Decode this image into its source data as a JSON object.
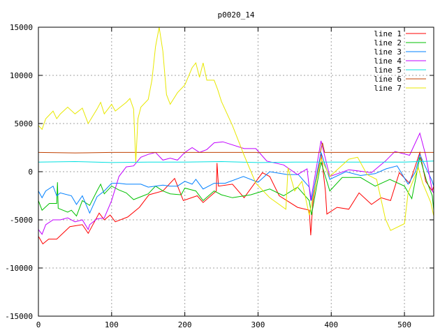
{
  "chart_data": {
    "type": "line",
    "title": "p0020_14",
    "xlabel": "",
    "ylabel": "",
    "xlim": [
      0,
      540
    ],
    "ylim": [
      -15000,
      15000
    ],
    "xticks": [
      0,
      100,
      200,
      300,
      400,
      500
    ],
    "yticks": [
      -15000,
      -10000,
      -5000,
      0,
      5000,
      10000,
      15000
    ],
    "grid": true,
    "legend_position": "top-right",
    "series": [
      {
        "name": "line 1",
        "color": "#ff0000",
        "points": [
          [
            0,
            -6700
          ],
          [
            6,
            -7500
          ],
          [
            14,
            -7000
          ],
          [
            25,
            -7000
          ],
          [
            43,
            -5700
          ],
          [
            60,
            -5500
          ],
          [
            68,
            -6400
          ],
          [
            83,
            -4300
          ],
          [
            90,
            -5000
          ],
          [
            98,
            -4500
          ],
          [
            105,
            -5200
          ],
          [
            122,
            -4700
          ],
          [
            138,
            -3700
          ],
          [
            151,
            -2400
          ],
          [
            170,
            -2000
          ],
          [
            186,
            -700
          ],
          [
            198,
            -3000
          ],
          [
            217,
            -2500
          ],
          [
            225,
            -3200
          ],
          [
            243,
            -2000
          ],
          [
            244,
            900
          ],
          [
            246,
            -1500
          ],
          [
            265,
            -1300
          ],
          [
            281,
            -2700
          ],
          [
            306,
            -100
          ],
          [
            316,
            -500
          ],
          [
            329,
            -2500
          ],
          [
            354,
            -3700
          ],
          [
            370,
            -4000
          ],
          [
            372,
            -6600
          ],
          [
            375,
            -3000
          ],
          [
            386,
            2000
          ],
          [
            392,
            -2000
          ],
          [
            394,
            -4400
          ],
          [
            408,
            -3700
          ],
          [
            424,
            -3900
          ],
          [
            438,
            -2200
          ],
          [
            455,
            -3400
          ],
          [
            468,
            -2700
          ],
          [
            481,
            -3000
          ],
          [
            493,
            -100
          ],
          [
            507,
            -1200
          ],
          [
            521,
            2000
          ],
          [
            529,
            -1000
          ],
          [
            538,
            -2000
          ],
          [
            540,
            -1500
          ]
        ]
      },
      {
        "name": "line 2",
        "color": "#00c000",
        "points": [
          [
            0,
            -3000
          ],
          [
            5,
            -4000
          ],
          [
            15,
            -3300
          ],
          [
            25,
            -3300
          ],
          [
            26,
            -1100
          ],
          [
            27,
            -3800
          ],
          [
            40,
            -4200
          ],
          [
            45,
            -4000
          ],
          [
            52,
            -4600
          ],
          [
            60,
            -3000
          ],
          [
            70,
            -3500
          ],
          [
            80,
            -2000
          ],
          [
            85,
            -1300
          ],
          [
            90,
            -2300
          ],
          [
            100,
            -1500
          ],
          [
            110,
            -1900
          ],
          [
            120,
            -2200
          ],
          [
            130,
            -2900
          ],
          [
            140,
            -2600
          ],
          [
            150,
            -2300
          ],
          [
            160,
            -1500
          ],
          [
            170,
            -2000
          ],
          [
            180,
            -2300
          ],
          [
            195,
            -2400
          ],
          [
            200,
            -1700
          ],
          [
            215,
            -2000
          ],
          [
            225,
            -3000
          ],
          [
            240,
            -2000
          ],
          [
            250,
            -2400
          ],
          [
            265,
            -2700
          ],
          [
            290,
            -2400
          ],
          [
            316,
            -1800
          ],
          [
            335,
            -2500
          ],
          [
            354,
            -1600
          ],
          [
            370,
            -3000
          ],
          [
            373,
            -4500
          ],
          [
            386,
            1000
          ],
          [
            398,
            -2000
          ],
          [
            415,
            -600
          ],
          [
            440,
            -600
          ],
          [
            460,
            -1500
          ],
          [
            480,
            -800
          ],
          [
            500,
            -1500
          ],
          [
            510,
            -2800
          ],
          [
            521,
            1500
          ],
          [
            530,
            -900
          ],
          [
            538,
            -2500
          ],
          [
            540,
            -4000
          ]
        ]
      },
      {
        "name": "line 3",
        "color": "#0080ff",
        "points": [
          [
            0,
            -2000
          ],
          [
            5,
            -2700
          ],
          [
            10,
            -2000
          ],
          [
            20,
            -1500
          ],
          [
            25,
            -2500
          ],
          [
            30,
            -2200
          ],
          [
            45,
            -2500
          ],
          [
            52,
            -3400
          ],
          [
            60,
            -2500
          ],
          [
            70,
            -4300
          ],
          [
            80,
            -2600
          ],
          [
            90,
            -2000
          ],
          [
            100,
            -1200
          ],
          [
            110,
            -1200
          ],
          [
            120,
            -1300
          ],
          [
            140,
            -1300
          ],
          [
            150,
            -1600
          ],
          [
            170,
            -1400
          ],
          [
            180,
            -1500
          ],
          [
            190,
            -1500
          ],
          [
            200,
            -1000
          ],
          [
            210,
            -1300
          ],
          [
            215,
            -800
          ],
          [
            225,
            -1800
          ],
          [
            240,
            -1200
          ],
          [
            255,
            -1200
          ],
          [
            280,
            -500
          ],
          [
            300,
            -1100
          ],
          [
            316,
            0
          ],
          [
            340,
            -300
          ],
          [
            355,
            -300
          ],
          [
            370,
            -1600
          ],
          [
            373,
            -3000
          ],
          [
            386,
            2000
          ],
          [
            398,
            -800
          ],
          [
            420,
            0
          ],
          [
            440,
            -400
          ],
          [
            460,
            -200
          ],
          [
            475,
            300
          ],
          [
            490,
            600
          ],
          [
            505,
            -1300
          ],
          [
            515,
            0
          ],
          [
            521,
            1800
          ],
          [
            530,
            300
          ],
          [
            538,
            -1000
          ],
          [
            540,
            -1500
          ]
        ]
      },
      {
        "name": "line 4",
        "color": "#c000ff",
        "points": [
          [
            0,
            -6000
          ],
          [
            5,
            -6500
          ],
          [
            10,
            -5500
          ],
          [
            20,
            -5000
          ],
          [
            30,
            -5000
          ],
          [
            40,
            -4800
          ],
          [
            50,
            -5200
          ],
          [
            60,
            -5000
          ],
          [
            68,
            -6000
          ],
          [
            70,
            -5500
          ],
          [
            80,
            -4900
          ],
          [
            90,
            -4800
          ],
          [
            100,
            -3000
          ],
          [
            110,
            -500
          ],
          [
            120,
            500
          ],
          [
            130,
            600
          ],
          [
            140,
            1500
          ],
          [
            150,
            1800
          ],
          [
            160,
            2000
          ],
          [
            170,
            1200
          ],
          [
            180,
            1400
          ],
          [
            190,
            1200
          ],
          [
            200,
            2000
          ],
          [
            210,
            2500
          ],
          [
            220,
            2000
          ],
          [
            230,
            2300
          ],
          [
            240,
            3000
          ],
          [
            252,
            3100
          ],
          [
            281,
            2400
          ],
          [
            297,
            2400
          ],
          [
            312,
            1100
          ],
          [
            335,
            700
          ],
          [
            354,
            -300
          ],
          [
            367,
            300
          ],
          [
            372,
            -3000
          ],
          [
            386,
            3200
          ],
          [
            398,
            -500
          ],
          [
            424,
            200
          ],
          [
            455,
            -100
          ],
          [
            474,
            1100
          ],
          [
            487,
            2100
          ],
          [
            507,
            1700
          ],
          [
            521,
            4000
          ],
          [
            529,
            1700
          ],
          [
            538,
            -2000
          ],
          [
            540,
            -2200
          ]
        ]
      },
      {
        "name": "line 5",
        "color": "#00e0e0",
        "points": [
          [
            0,
            1000
          ],
          [
            50,
            1050
          ],
          [
            100,
            950
          ],
          [
            150,
            1000
          ],
          [
            200,
            1000
          ],
          [
            250,
            1050
          ],
          [
            300,
            950
          ],
          [
            350,
            1000
          ],
          [
            400,
            1000
          ],
          [
            450,
            1000
          ],
          [
            500,
            1000
          ],
          [
            540,
            1100
          ]
        ]
      },
      {
        "name": "line 6",
        "color": "#c04000",
        "points": [
          [
            0,
            2000
          ],
          [
            50,
            1950
          ],
          [
            100,
            2000
          ],
          [
            150,
            2000
          ],
          [
            200,
            2000
          ],
          [
            250,
            2000
          ],
          [
            300,
            2000
          ],
          [
            350,
            2000
          ],
          [
            385,
            2000
          ],
          [
            388,
            3000
          ],
          [
            391,
            2000
          ],
          [
            450,
            2000
          ],
          [
            500,
            2000
          ],
          [
            540,
            2000
          ]
        ]
      },
      {
        "name": "line 7",
        "color": "#e8e800",
        "points": [
          [
            0,
            4800
          ],
          [
            5,
            4400
          ],
          [
            10,
            5500
          ],
          [
            20,
            6300
          ],
          [
            25,
            5500
          ],
          [
            30,
            6000
          ],
          [
            40,
            6700
          ],
          [
            50,
            6000
          ],
          [
            60,
            6600
          ],
          [
            68,
            5000
          ],
          [
            80,
            6500
          ],
          [
            85,
            7200
          ],
          [
            90,
            6000
          ],
          [
            100,
            7000
          ],
          [
            105,
            6300
          ],
          [
            120,
            7200
          ],
          [
            125,
            7600
          ],
          [
            130,
            6500
          ],
          [
            133,
            1000
          ],
          [
            136,
            5500
          ],
          [
            140,
            6700
          ],
          [
            150,
            7500
          ],
          [
            155,
            9500
          ],
          [
            160,
            13000
          ],
          [
            165,
            15000
          ],
          [
            170,
            12500
          ],
          [
            175,
            8000
          ],
          [
            180,
            7000
          ],
          [
            190,
            8200
          ],
          [
            200,
            9000
          ],
          [
            210,
            10800
          ],
          [
            215,
            11300
          ],
          [
            220,
            9800
          ],
          [
            225,
            11300
          ],
          [
            230,
            9500
          ],
          [
            240,
            9500
          ],
          [
            245,
            8500
          ],
          [
            250,
            7300
          ],
          [
            265,
            4800
          ],
          [
            281,
            1700
          ],
          [
            297,
            -1200
          ],
          [
            316,
            -2700
          ],
          [
            338,
            -3900
          ],
          [
            341,
            400
          ],
          [
            350,
            -2000
          ],
          [
            360,
            -1000
          ],
          [
            370,
            -4500
          ],
          [
            386,
            1400
          ],
          [
            398,
            -500
          ],
          [
            424,
            1300
          ],
          [
            436,
            1500
          ],
          [
            449,
            -300
          ],
          [
            462,
            -800
          ],
          [
            474,
            -4900
          ],
          [
            481,
            -6100
          ],
          [
            500,
            -5400
          ],
          [
            505,
            -2200
          ],
          [
            519,
            400
          ],
          [
            525,
            -1200
          ],
          [
            536,
            -3200
          ],
          [
            540,
            -4600
          ]
        ]
      }
    ]
  }
}
